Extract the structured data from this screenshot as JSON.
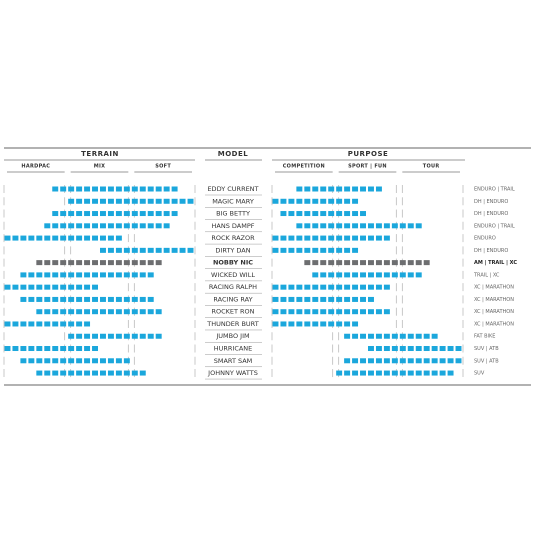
{
  "chart_data": {
    "type": "range",
    "headers": {
      "terrain": "TERRAIN",
      "model": "MODEL",
      "purpose": "PURPOSE"
    },
    "terrain_columns": [
      "HARDPAC",
      "MIX",
      "SOFT"
    ],
    "purpose_columns": [
      "COMPETITION",
      "SPORT | FUN",
      "TOUR"
    ],
    "xlim": [
      0,
      24
    ],
    "series": [
      {
        "name": "EDDY CURRENT",
        "category": "ENDURO | TRAIL",
        "terrain": [
          6,
          22
        ],
        "purpose": [
          3,
          14
        ],
        "color": "#1ba7dc"
      },
      {
        "name": "MAGIC MARY",
        "category": "DH | ENDURO",
        "terrain": [
          8,
          24
        ],
        "purpose": [
          0,
          11
        ],
        "color": "#1ba7dc"
      },
      {
        "name": "BIG BETTY",
        "category": "DH | ENDURO",
        "terrain": [
          6,
          22
        ],
        "purpose": [
          1,
          12
        ],
        "color": "#1ba7dc"
      },
      {
        "name": "HANS DAMPF",
        "category": "ENDURO | TRAIL",
        "terrain": [
          5,
          21
        ],
        "purpose": [
          3,
          19
        ],
        "color": "#1ba7dc"
      },
      {
        "name": "ROCK RAZOR",
        "category": "ENDURO",
        "terrain": [
          0,
          15
        ],
        "purpose": [
          0,
          15
        ],
        "color": "#1ba7dc"
      },
      {
        "name": "DIRTY DAN",
        "category": "DH | ENDURO",
        "terrain": [
          12,
          24
        ],
        "purpose": [
          0,
          11
        ],
        "color": "#1ba7dc"
      },
      {
        "name": "NOBBY NIC",
        "category": "AM | TRAIL | XC",
        "terrain": [
          4,
          20
        ],
        "purpose": [
          4,
          20
        ],
        "color": "#6d6e70",
        "bold": true
      },
      {
        "name": "WICKED WILL",
        "category": "TRAIL | XC",
        "terrain": [
          2,
          19
        ],
        "purpose": [
          5,
          19
        ],
        "color": "#1ba7dc"
      },
      {
        "name": "RACING RALPH",
        "category": "XC | MARATHON",
        "terrain": [
          0,
          12
        ],
        "purpose": [
          0,
          15
        ],
        "color": "#1ba7dc"
      },
      {
        "name": "RACING RAY",
        "category": "XC | MARATHON",
        "terrain": [
          2,
          19
        ],
        "purpose": [
          0,
          13
        ],
        "color": "#1ba7dc"
      },
      {
        "name": "ROCKET RON",
        "category": "XC | MARATHON",
        "terrain": [
          4,
          20
        ],
        "purpose": [
          0,
          15
        ],
        "color": "#1ba7dc"
      },
      {
        "name": "THUNDER BURT",
        "category": "XC | MARATHON",
        "terrain": [
          0,
          11
        ],
        "purpose": [
          0,
          11
        ],
        "color": "#1ba7dc"
      },
      {
        "name": "JUMBO JIM",
        "category": "FAT BIKE",
        "terrain": [
          8,
          20
        ],
        "purpose": [
          9,
          21
        ],
        "color": "#1ba7dc"
      },
      {
        "name": "HURRICANE",
        "category": "SUV | ATB",
        "terrain": [
          0,
          12
        ],
        "purpose": [
          12,
          24
        ],
        "color": "#1ba7dc"
      },
      {
        "name": "SMART SAM",
        "category": "SUV | ATB",
        "terrain": [
          2,
          16
        ],
        "purpose": [
          9,
          24
        ],
        "color": "#1ba7dc"
      },
      {
        "name": "JOHNNY WATTS",
        "category": "SUV",
        "terrain": [
          4,
          18
        ],
        "purpose": [
          8,
          23
        ],
        "color": "#1ba7dc"
      }
    ]
  }
}
